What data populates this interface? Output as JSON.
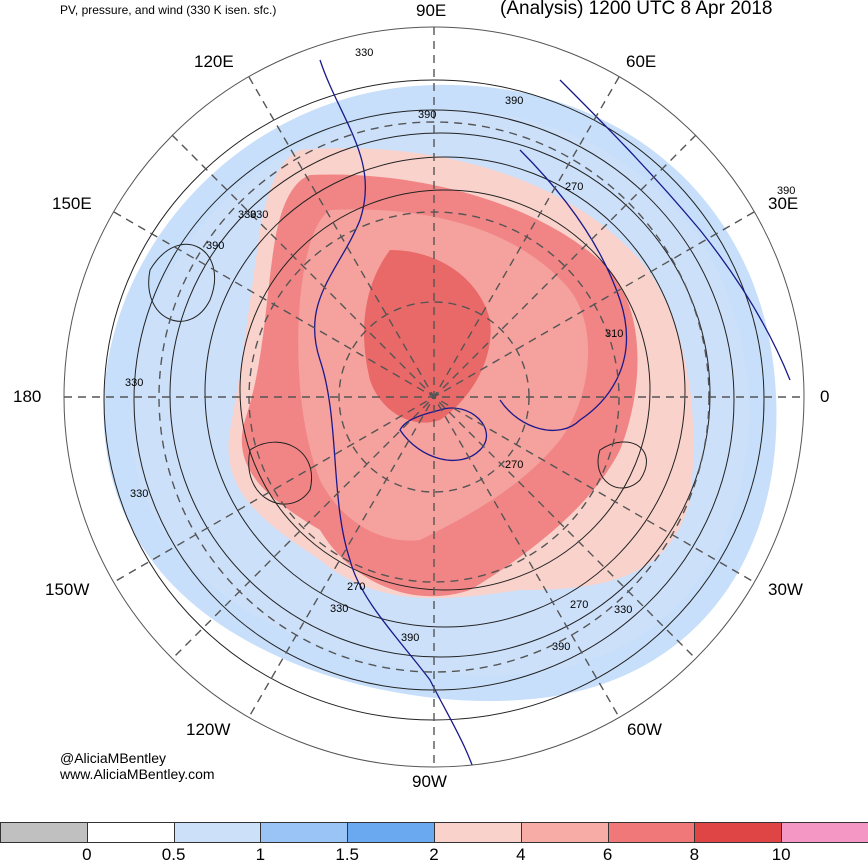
{
  "header": {
    "subtitle": "PV, pressure, and wind (330 K isen. sfc.)",
    "title": "(Analysis) 1200 UTC 8 Apr 2018"
  },
  "map_labels": {
    "lon_90e": "90E",
    "lon_120e": "120E",
    "lon_60e": "60E",
    "lon_150e": "150E",
    "lon_30e": "30E",
    "lon_180": "180",
    "lon_0": "0",
    "lon_150w": "150W",
    "lon_30w": "30W",
    "lon_120w": "120W",
    "lon_60w": "60W",
    "lon_90w": "90W"
  },
  "contour_labels": [
    "330",
    "390",
    "330",
    "270",
    "390",
    "330",
    "390",
    "330",
    "390",
    "310",
    "270",
    "330",
    "270",
    "330",
    "390",
    "390",
    "270",
    "330"
  ],
  "credit": {
    "handle": "@AliciaMBentley",
    "site": "www.AliciaMBentley.com"
  },
  "colorbar": {
    "colors": [
      "#c0c0c0",
      "#ffffff",
      "#cce0fa",
      "#99c4f5",
      "#6aa8f0",
      "#f9d2cc",
      "#f7aca6",
      "#f07878",
      "#e04545",
      "#f597c5"
    ],
    "ticks": [
      "0",
      "0.5",
      "1",
      "1.5",
      "2",
      "4",
      "6",
      "8",
      "10"
    ]
  }
}
